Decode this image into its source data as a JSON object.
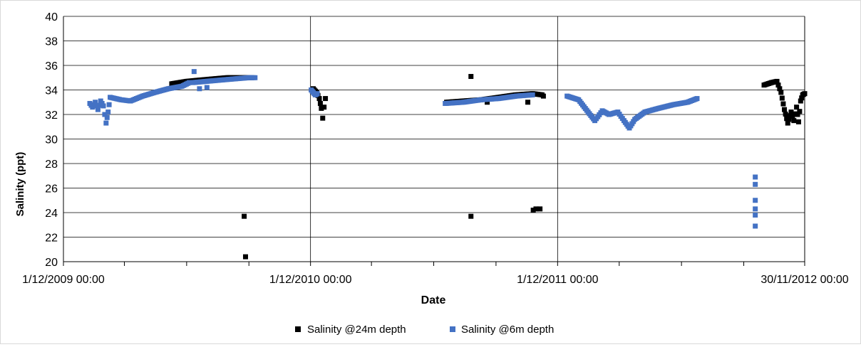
{
  "chart_data": {
    "type": "scatter",
    "title": "",
    "xlabel": "Date",
    "ylabel": "Salinity (ppt)",
    "ylim": [
      20,
      40
    ],
    "yticks": [
      20,
      22,
      24,
      26,
      28,
      30,
      32,
      34,
      36,
      38,
      40
    ],
    "ytick_labels": [
      "20",
      "22",
      "24",
      "26",
      "28",
      "30",
      "32",
      "34",
      "36",
      "38",
      "40"
    ],
    "xlim": [
      "2009-12-01",
      "2012-11-30"
    ],
    "xtick_labels": [
      {
        "date": "2009-12-01",
        "label": "1/12/2009 00:00"
      },
      {
        "date": "2010-12-01",
        "label": "1/12/2010 00:00"
      },
      {
        "date": "2011-12-01",
        "label": "1/12/2011 00:00"
      },
      {
        "date": "2012-11-30",
        "label": "30/11/2012 00:00"
      }
    ],
    "grid": {
      "horizontal": true,
      "vertical_at_labeled_dates": true
    },
    "legend_position": "bottom",
    "series": [
      {
        "name": "Salinity @24m depth",
        "color": "#000000",
        "marker": "square",
        "segments": [
          [
            [
              "2010-05-10",
              34.5
            ],
            [
              "2010-06-01",
              34.7
            ],
            [
              "2010-06-20",
              34.8
            ],
            [
              "2010-07-10",
              34.9
            ],
            [
              "2010-07-31",
              35.0
            ],
            [
              "2010-08-20",
              35.0
            ],
            [
              "2010-09-05",
              35.0
            ]
          ],
          [
            [
              "2010-12-05",
              34.1
            ],
            [
              "2010-12-10",
              33.8
            ],
            [
              "2010-12-14",
              33.3
            ],
            [
              "2010-12-17",
              32.5
            ],
            [
              "2010-12-19",
              31.7
            ],
            [
              "2010-12-21",
              32.6
            ],
            [
              "2010-12-23",
              33.3
            ]
          ],
          [
            [
              "2011-06-20",
              33.0
            ],
            [
              "2011-07-15",
              33.1
            ],
            [
              "2011-08-10",
              33.2
            ],
            [
              "2011-09-05",
              33.4
            ],
            [
              "2011-09-30",
              33.6
            ],
            [
              "2011-10-25",
              33.7
            ],
            [
              "2011-11-08",
              33.6
            ]
          ],
          [
            [
              "2012-10-01",
              34.4
            ],
            [
              "2012-10-12",
              34.6
            ],
            [
              "2012-10-20",
              34.7
            ],
            [
              "2012-10-26",
              33.8
            ],
            [
              "2012-10-31",
              32.4
            ],
            [
              "2012-11-05",
              31.3
            ],
            [
              "2012-11-10",
              32.2
            ],
            [
              "2012-11-14",
              31.5
            ],
            [
              "2012-11-18",
              32.6
            ],
            [
              "2012-11-21",
              31.4
            ],
            [
              "2012-11-24",
              33.1
            ],
            [
              "2012-11-27",
              33.6
            ],
            [
              "2012-11-30",
              33.7
            ]
          ]
        ],
        "points": [
          [
            "2010-08-25",
            23.7
          ],
          [
            "2010-08-27",
            20.4
          ],
          [
            "2011-07-26",
            35.1
          ],
          [
            "2011-07-26",
            23.7
          ],
          [
            "2011-08-19",
            33.0
          ],
          [
            "2011-10-18",
            33.0
          ],
          [
            "2011-10-26",
            24.2
          ],
          [
            "2011-10-30",
            24.3
          ],
          [
            "2011-11-05",
            24.3
          ],
          [
            "2011-11-10",
            33.5
          ]
        ]
      },
      {
        "name": "Salinity @6m depth",
        "color": "#4472C4",
        "marker": "square",
        "segments": [
          [
            [
              "2010-01-09",
              32.9
            ],
            [
              "2010-01-13",
              32.6
            ],
            [
              "2010-01-17",
              33.0
            ],
            [
              "2010-01-21",
              32.4
            ],
            [
              "2010-01-25",
              33.1
            ],
            [
              "2010-01-29",
              32.7
            ],
            [
              "2010-02-02",
              31.3
            ],
            [
              "2010-02-05",
              32.2
            ],
            [
              "2010-02-08",
              33.4
            ],
            [
              "2010-02-24",
              33.2
            ],
            [
              "2010-03-10",
              33.1
            ],
            [
              "2010-03-28",
              33.5
            ],
            [
              "2010-04-15",
              33.8
            ],
            [
              "2010-05-05",
              34.1
            ],
            [
              "2010-05-25",
              34.3
            ],
            [
              "2010-06-05",
              34.6
            ]
          ],
          [
            [
              "2010-06-10",
              34.6
            ],
            [
              "2010-06-30",
              34.7
            ],
            [
              "2010-07-20",
              34.8
            ],
            [
              "2010-08-10",
              34.9
            ],
            [
              "2010-09-01",
              35.0
            ],
            [
              "2010-09-10",
              35.0
            ]
          ],
          [
            [
              "2010-12-02",
              34.0
            ],
            [
              "2010-12-05",
              33.8
            ],
            [
              "2010-12-08",
              33.6
            ],
            [
              "2010-12-11",
              33.7
            ]
          ],
          [
            [
              "2011-06-18",
              32.9
            ],
            [
              "2011-07-15",
              33.0
            ],
            [
              "2011-08-10",
              33.2
            ],
            [
              "2011-09-05",
              33.3
            ],
            [
              "2011-10-01",
              33.5
            ],
            [
              "2011-10-25",
              33.6
            ]
          ],
          [
            [
              "2011-12-15",
              33.5
            ],
            [
              "2012-01-01",
              33.2
            ],
            [
              "2012-01-15",
              32.2
            ],
            [
              "2012-01-25",
              31.5
            ],
            [
              "2012-02-05",
              32.3
            ],
            [
              "2012-02-15",
              32.0
            ],
            [
              "2012-02-28",
              32.2
            ],
            [
              "2012-03-08",
              31.5
            ],
            [
              "2012-03-16",
              30.9
            ],
            [
              "2012-03-24",
              31.6
            ],
            [
              "2012-04-08",
              32.2
            ],
            [
              "2012-04-28",
              32.5
            ],
            [
              "2012-05-20",
              32.8
            ],
            [
              "2012-06-10",
              33.0
            ],
            [
              "2012-06-24",
              33.3
            ]
          ]
        ],
        "points": [
          [
            "2010-06-12",
            35.5
          ],
          [
            "2010-06-20",
            34.1
          ],
          [
            "2010-07-01",
            34.2
          ],
          [
            "2012-09-18",
            26.9
          ],
          [
            "2012-09-18",
            26.3
          ],
          [
            "2012-09-18",
            25.0
          ],
          [
            "2012-09-18",
            24.3
          ],
          [
            "2012-09-18",
            23.8
          ],
          [
            "2012-09-18",
            22.9
          ]
        ]
      }
    ]
  }
}
